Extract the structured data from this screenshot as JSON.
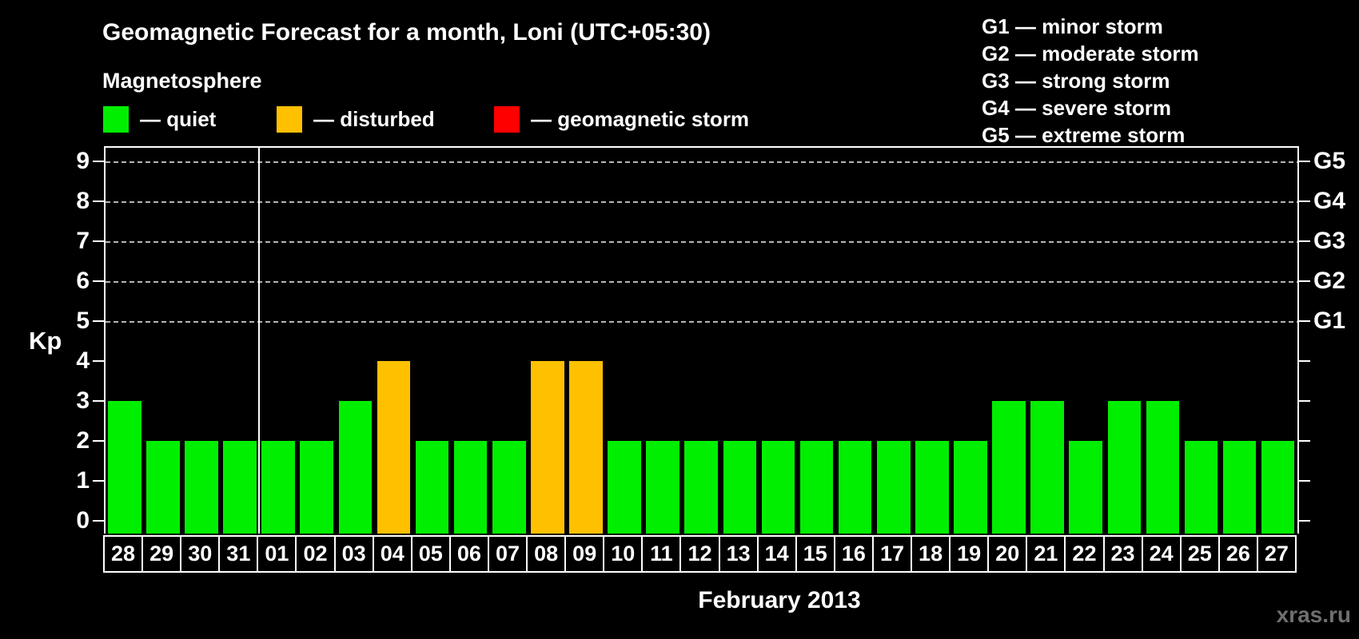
{
  "title": "Geomagnetic Forecast for a month, Loni (UTC+05:30)",
  "magnetosphere_label": "Magnetosphere",
  "legend": {
    "items": [
      {
        "name": "quiet",
        "label": "— quiet",
        "color": "#00ef00"
      },
      {
        "name": "disturbed",
        "label": "— disturbed",
        "color": "#ffc000"
      },
      {
        "name": "storm",
        "label": "— geomagnetic storm",
        "color": "#ff0000"
      }
    ]
  },
  "storm_scale_legend": [
    "G1 — minor storm",
    "G2 — moderate storm",
    "G3 — strong storm",
    "G4 — severe storm",
    "G5 — extreme storm"
  ],
  "watermark": "xras.ru",
  "colors": {
    "quiet": "#00ef00",
    "disturbed": "#ffc000",
    "storm": "#ff0000",
    "grid": "#b4b4b4",
    "axis": "#ffffff",
    "background": "#000000",
    "watermark_text": "#6f6f6f"
  },
  "chart_data": {
    "type": "bar",
    "title": "Geomagnetic Forecast for a month, Loni (UTC+05:30)",
    "xlabel": "February 2013",
    "ylabel": "Kp",
    "ylim": [
      0,
      9
    ],
    "yticks": [
      0,
      1,
      2,
      3,
      4,
      5,
      6,
      7,
      8,
      9
    ],
    "grid": "dashed-horizontal",
    "grid_levels": [
      5,
      6,
      7,
      8,
      9
    ],
    "legend_position": "top-left",
    "right_axis_labels": [
      {
        "kp": 5,
        "label": "G1"
      },
      {
        "kp": 6,
        "label": "G2"
      },
      {
        "kp": 7,
        "label": "G3"
      },
      {
        "kp": 8,
        "label": "G4"
      },
      {
        "kp": 9,
        "label": "G5"
      }
    ],
    "month_separator_after_category": "31",
    "categories": [
      "28",
      "29",
      "30",
      "31",
      "01",
      "02",
      "03",
      "04",
      "05",
      "06",
      "07",
      "08",
      "09",
      "10",
      "11",
      "12",
      "13",
      "14",
      "15",
      "16",
      "17",
      "18",
      "19",
      "20",
      "21",
      "22",
      "23",
      "24",
      "25",
      "26",
      "27"
    ],
    "values": [
      3,
      2,
      2,
      2,
      2,
      2,
      3,
      4,
      2,
      2,
      2,
      4,
      4,
      2,
      2,
      2,
      2,
      2,
      2,
      2,
      2,
      2,
      2,
      3,
      3,
      2,
      3,
      3,
      2,
      2,
      2
    ],
    "bars": [
      {
        "day": "28",
        "kp": 3,
        "status": "quiet"
      },
      {
        "day": "29",
        "kp": 2,
        "status": "quiet"
      },
      {
        "day": "30",
        "kp": 2,
        "status": "quiet"
      },
      {
        "day": "31",
        "kp": 2,
        "status": "quiet"
      },
      {
        "day": "01",
        "kp": 2,
        "status": "quiet"
      },
      {
        "day": "02",
        "kp": 2,
        "status": "quiet"
      },
      {
        "day": "03",
        "kp": 3,
        "status": "quiet"
      },
      {
        "day": "04",
        "kp": 4,
        "status": "disturbed"
      },
      {
        "day": "05",
        "kp": 2,
        "status": "quiet"
      },
      {
        "day": "06",
        "kp": 2,
        "status": "quiet"
      },
      {
        "day": "07",
        "kp": 2,
        "status": "quiet"
      },
      {
        "day": "08",
        "kp": 4,
        "status": "disturbed"
      },
      {
        "day": "09",
        "kp": 4,
        "status": "disturbed"
      },
      {
        "day": "10",
        "kp": 2,
        "status": "quiet"
      },
      {
        "day": "11",
        "kp": 2,
        "status": "quiet"
      },
      {
        "day": "12",
        "kp": 2,
        "status": "quiet"
      },
      {
        "day": "13",
        "kp": 2,
        "status": "quiet"
      },
      {
        "day": "14",
        "kp": 2,
        "status": "quiet"
      },
      {
        "day": "15",
        "kp": 2,
        "status": "quiet"
      },
      {
        "day": "16",
        "kp": 2,
        "status": "quiet"
      },
      {
        "day": "17",
        "kp": 2,
        "status": "quiet"
      },
      {
        "day": "18",
        "kp": 2,
        "status": "quiet"
      },
      {
        "day": "19",
        "kp": 2,
        "status": "quiet"
      },
      {
        "day": "20",
        "kp": 3,
        "status": "quiet"
      },
      {
        "day": "21",
        "kp": 3,
        "status": "quiet"
      },
      {
        "day": "22",
        "kp": 2,
        "status": "quiet"
      },
      {
        "day": "23",
        "kp": 3,
        "status": "quiet"
      },
      {
        "day": "24",
        "kp": 3,
        "status": "quiet"
      },
      {
        "day": "25",
        "kp": 2,
        "status": "quiet"
      },
      {
        "day": "26",
        "kp": 2,
        "status": "quiet"
      },
      {
        "day": "27",
        "kp": 2,
        "status": "quiet"
      }
    ]
  }
}
